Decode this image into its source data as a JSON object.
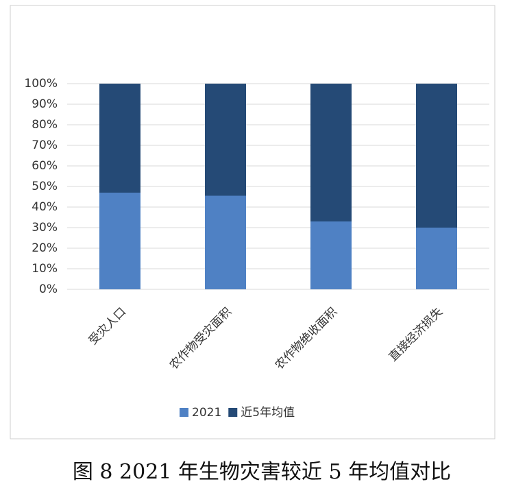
{
  "chart_data": {
    "type": "stacked_bar",
    "categories": [
      "受灾人口",
      "农作物受灾面积",
      "农作物绝收面积",
      "直接经济损失"
    ],
    "series": [
      {
        "name": "2021",
        "color": "#4f81c4",
        "values": [
          47,
          45.5,
          33,
          30
        ]
      },
      {
        "name": "近5年均值",
        "color": "#254a76",
        "values": [
          53,
          54.5,
          67,
          70
        ]
      }
    ],
    "ylim": [
      0,
      100
    ],
    "yticks": [
      {
        "value": 0,
        "label": "0%"
      },
      {
        "value": 10,
        "label": "10%"
      },
      {
        "value": 20,
        "label": "20%"
      },
      {
        "value": 30,
        "label": "30%"
      },
      {
        "value": 40,
        "label": "40%"
      },
      {
        "value": 50,
        "label": "50%"
      },
      {
        "value": 60,
        "label": "60%"
      },
      {
        "value": 70,
        "label": "70%"
      },
      {
        "value": 80,
        "label": "80%"
      },
      {
        "value": 90,
        "label": "90%"
      },
      {
        "value": 100,
        "label": "100%"
      }
    ],
    "grid": true,
    "legend": "bottom"
  },
  "caption": "图 8 2021 年生物灾害较近 5 年均值对比"
}
